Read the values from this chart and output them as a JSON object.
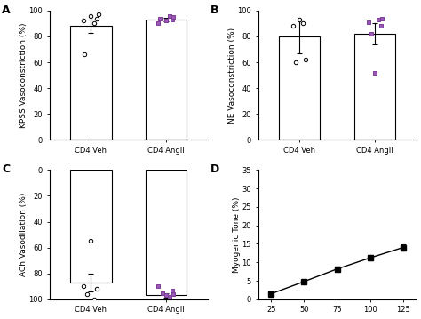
{
  "panel_A": {
    "label": "A",
    "ylabel": "KPSS Vasoconstriction (%)",
    "categories": [
      "CD4 Veh",
      "CD4 AngII"
    ],
    "bar_means": [
      88,
      93
    ],
    "bar_errors": [
      5,
      1.5
    ],
    "ylim": [
      0,
      100
    ],
    "yticks": [
      0,
      20,
      40,
      60,
      80,
      100
    ],
    "scatter_veh": [
      66,
      90,
      92,
      94,
      96,
      97
    ],
    "scatter_veh_x": [
      -0.08,
      0.05,
      -0.1,
      0.08,
      0.0,
      0.1
    ],
    "scatter_angii": [
      90,
      92,
      93,
      94,
      95,
      96
    ],
    "scatter_angii_x": [
      -0.1,
      0.0,
      0.08,
      -0.08,
      0.1,
      0.05
    ]
  },
  "panel_B": {
    "label": "B",
    "ylabel": "NE Vasoconstriction (%)",
    "categories": [
      "CD4 Veh",
      "CD4 AngII"
    ],
    "bar_means": [
      80,
      82
    ],
    "bar_errors": [
      13,
      8
    ],
    "ylim": [
      0,
      100
    ],
    "yticks": [
      0,
      20,
      40,
      60,
      80,
      100
    ],
    "scatter_veh": [
      60,
      62,
      88,
      90,
      93
    ],
    "scatter_veh_x": [
      -0.05,
      0.08,
      -0.08,
      0.05,
      0.0
    ],
    "scatter_angii": [
      52,
      82,
      88,
      91,
      93,
      94
    ],
    "scatter_angii_x": [
      0.0,
      -0.05,
      0.08,
      -0.08,
      0.05,
      0.1
    ]
  },
  "panel_C": {
    "label": "C",
    "ylabel": "ACh Vasodilation (%)",
    "categories": [
      "CD4 Veh",
      "CD4 AngII"
    ],
    "bar_means": [
      87,
      97
    ],
    "bar_errors": [
      7,
      2
    ],
    "ylim": [
      0,
      100
    ],
    "yticks": [
      0,
      20,
      40,
      60,
      80,
      100
    ],
    "scatter_veh": [
      55,
      90,
      92,
      96,
      100
    ],
    "scatter_veh_x": [
      0.0,
      -0.1,
      0.08,
      -0.05,
      0.05
    ],
    "scatter_angii": [
      90,
      93,
      95,
      96,
      97,
      98
    ],
    "scatter_angii_x": [
      -0.1,
      0.08,
      -0.05,
      0.1,
      0.0,
      0.05
    ]
  },
  "panel_D": {
    "label": "D",
    "ylabel": "Myogenic Tone (%)",
    "x": [
      25,
      50,
      75,
      100,
      125
    ],
    "y": [
      1.5,
      4.8,
      8.2,
      11.2,
      14.0
    ],
    "errors": [
      0.3,
      0.4,
      0.6,
      0.7,
      0.8
    ],
    "ylim": [
      0,
      35
    ],
    "yticks": [
      0,
      5,
      10,
      15,
      20,
      25,
      30,
      35
    ],
    "xticks": [
      25,
      50,
      75,
      100,
      125
    ]
  },
  "bar_color": "#ffffff",
  "bar_edgecolor": "#000000",
  "veh_marker_color": "#ffffff",
  "veh_marker_edgecolor": "#000000",
  "angii_marker_color": "#9b59b6",
  "angii_marker_edgecolor": "#7d3c98",
  "line_color": "#000000",
  "error_capsize": 2.5,
  "bar_width": 0.55,
  "fontsize_label": 6.5,
  "fontsize_tick": 6,
  "fontsize_panel": 9
}
